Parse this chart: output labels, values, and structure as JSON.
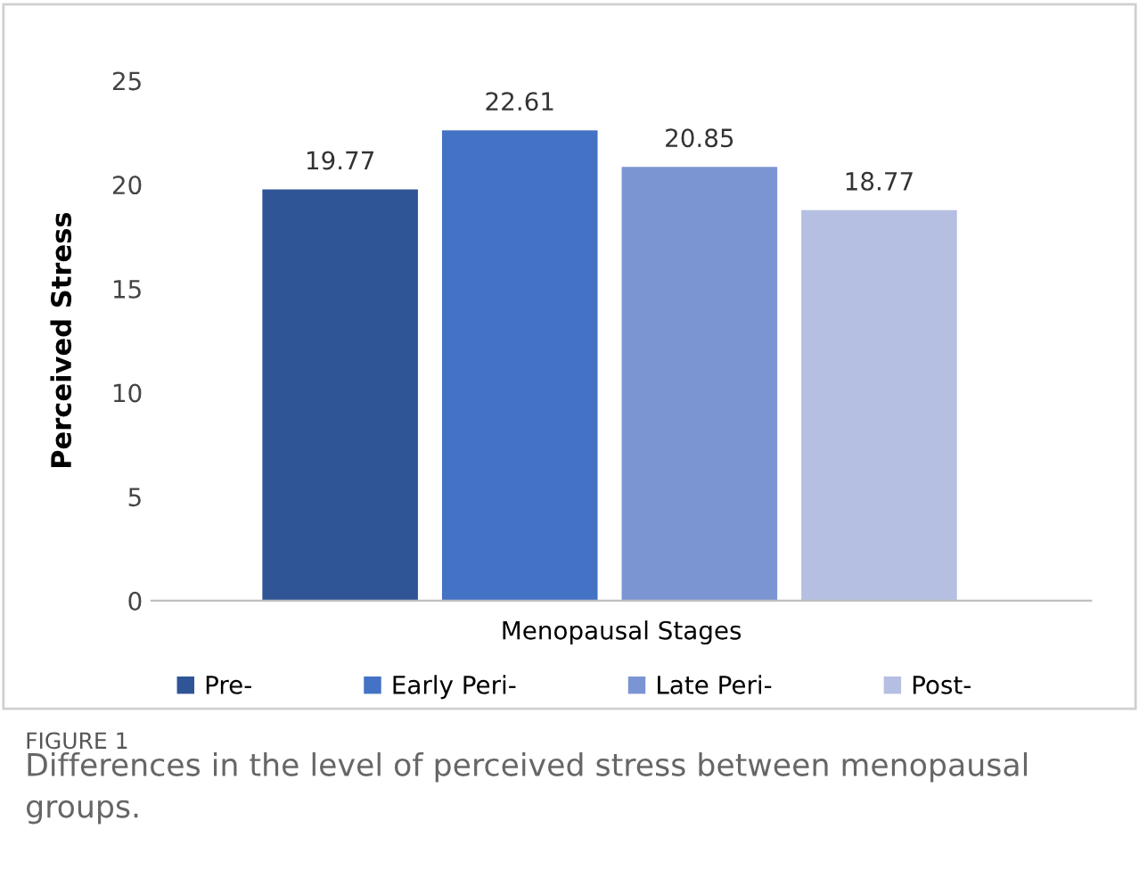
{
  "chart_data": {
    "type": "bar",
    "ylabel": "Perceived Stress",
    "xlabel": "Menopausal Stages",
    "categories": [
      null
    ],
    "series": [
      {
        "name": "Pre-",
        "color": "#2f5597",
        "values": [
          19.77
        ]
      },
      {
        "name": "Early Peri-",
        "color": "#4472c4",
        "values": [
          22.61
        ]
      },
      {
        "name": "Late Peri-",
        "color": "#7b95d3",
        "values": [
          20.85
        ]
      },
      {
        "name": "Post-",
        "color": "#b4bfe1",
        "values": [
          18.77
        ]
      }
    ],
    "ylim": [
      0,
      25
    ],
    "yticks": [
      0,
      5,
      10,
      15,
      20,
      25
    ],
    "grid": false,
    "legend": "bottom",
    "data_labels": true,
    "annotations": [
      "FIGURE 1",
      "Differences in the level of perceived stress between menopausal groups."
    ]
  }
}
